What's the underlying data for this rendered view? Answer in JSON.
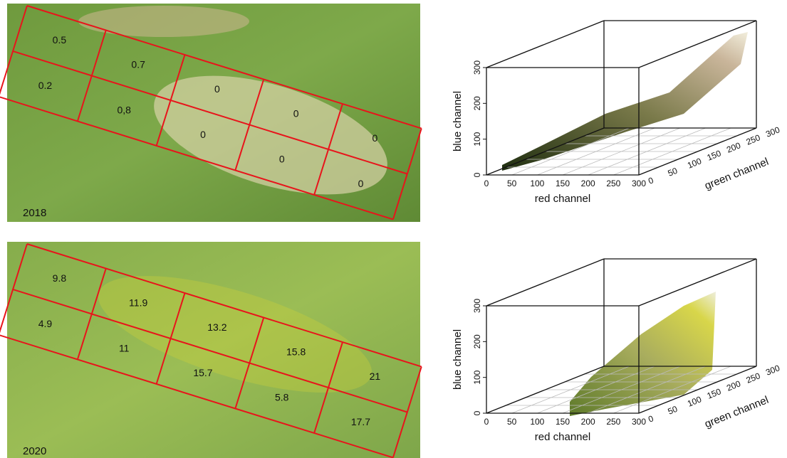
{
  "panels": [
    {
      "year": "2018",
      "cells": [
        [
          "0.5",
          "0.7",
          "0",
          "0",
          "0"
        ],
        [
          "0.2",
          "0,8",
          "0",
          "0",
          "0"
        ]
      ],
      "plot": {
        "x_label": "red channel",
        "y_label": "green channel",
        "z_label": "blue channel",
        "x_ticks": [
          0,
          50,
          100,
          150,
          200,
          250,
          300
        ],
        "y_ticks": [
          0,
          50,
          100,
          150,
          200,
          250,
          300
        ],
        "z_ticks": [
          0,
          100,
          200,
          300
        ]
      }
    },
    {
      "year": "2020",
      "cells": [
        [
          "9.8",
          "11.9",
          "13.2",
          "15.8",
          "21"
        ],
        [
          "4.9",
          "11",
          "15.7",
          "5.8",
          "17.7"
        ]
      ],
      "plot": {
        "x_label": "red channel",
        "y_label": "green channel",
        "z_label": "blue channel",
        "x_ticks": [
          0,
          50,
          100,
          150,
          200,
          250,
          300
        ],
        "y_ticks": [
          0,
          50,
          100,
          150,
          200,
          250,
          300
        ],
        "z_ticks": [
          0,
          100,
          200,
          300
        ]
      }
    }
  ]
}
